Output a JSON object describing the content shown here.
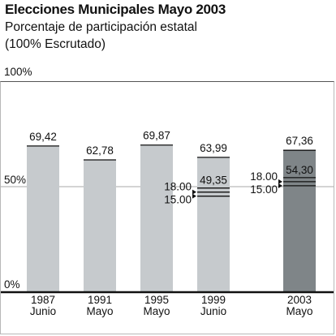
{
  "header": {
    "title": "Elecciones Municipales Mayo 2003",
    "subtitle_line1": "Porcentaje de participación estatal",
    "subtitle_line2": "(100% Escrutado)"
  },
  "chart_data": {
    "type": "bar",
    "title": "Elecciones Municipales Mayo 2003",
    "subtitle": "Porcentaje de participación estatal (100% Escrutado)",
    "xlabel": "",
    "ylabel": "",
    "ylim": [
      0,
      100
    ],
    "y_ticks": [
      "0%",
      "50%",
      "100%"
    ],
    "grid": "horizontal line at 50%",
    "categories": [
      {
        "year": "1987",
        "month": "Junio"
      },
      {
        "year": "1991",
        "month": "Mayo"
      },
      {
        "year": "1995",
        "month": "Mayo"
      },
      {
        "year": "1999",
        "month": "Junio"
      },
      {
        "year": "2003",
        "month": "Mayo"
      }
    ],
    "values": [
      69.42,
      62.78,
      69.87,
      63.99,
      67.36
    ],
    "value_labels": [
      "69,42",
      "62,78",
      "69,87",
      "63,99",
      "67,36"
    ],
    "highlight_index": 4,
    "colors": {
      "bar": "#c6cacd",
      "highlight": "#7f8588",
      "axis": "#111111",
      "grid": "#a9a9a9"
    },
    "annotations": [
      {
        "bar_index": 3,
        "value": 49.35,
        "label": "49,35",
        "markers": [
          {
            "value": 18.0,
            "label": "18.00"
          },
          {
            "value": 15.0,
            "label": "15.00"
          }
        ]
      },
      {
        "bar_index": 4,
        "value": 54.3,
        "label": "54,30",
        "markers": [
          {
            "value": 18.0,
            "label": "18.00"
          },
          {
            "value": 15.0,
            "label": "15.00"
          }
        ]
      }
    ]
  }
}
